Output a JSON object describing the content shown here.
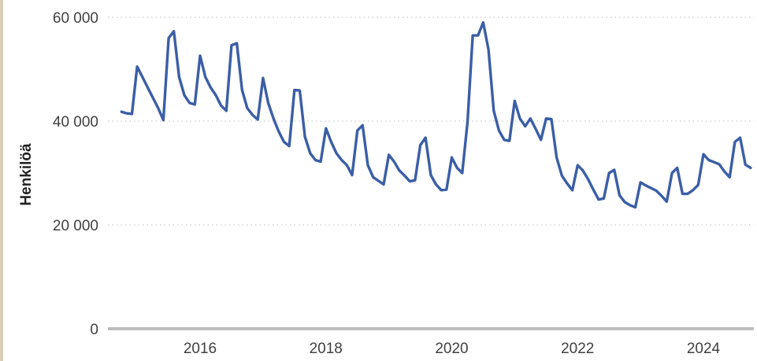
{
  "colors": {
    "line": "#3b5ea6",
    "grid": "#c9c9c9",
    "baseline": "#bdbdbd",
    "text": "#404040"
  },
  "chart_data": {
    "type": "line",
    "title": "",
    "xlabel": "",
    "ylabel": "Henkilöä",
    "ylim": [
      0,
      60000
    ],
    "yticks": [
      0,
      20000,
      40000,
      60000
    ],
    "ytick_labels": [
      "0",
      "20 000",
      "40 000",
      "60 000"
    ],
    "xticks": [
      "2016",
      "2018",
      "2020",
      "2022",
      "2024"
    ],
    "xlim": [
      "2014-10",
      "2024-10"
    ],
    "grid": "horizontal dotted",
    "legend": "none",
    "series": [
      {
        "x": [
          "2014-10",
          "2014-11",
          "2014-12",
          "2015-01",
          "2015-02",
          "2015-03",
          "2015-04",
          "2015-05",
          "2015-06",
          "2015-07",
          "2015-08",
          "2015-09",
          "2015-10",
          "2015-11",
          "2015-12",
          "2016-01",
          "2016-02",
          "2016-03",
          "2016-04",
          "2016-05",
          "2016-06",
          "2016-07",
          "2016-08",
          "2016-09",
          "2016-10",
          "2016-11",
          "2016-12",
          "2017-01",
          "2017-02",
          "2017-03",
          "2017-04",
          "2017-05",
          "2017-06",
          "2017-07",
          "2017-08",
          "2017-09",
          "2017-10",
          "2017-11",
          "2017-12",
          "2018-01",
          "2018-02",
          "2018-03",
          "2018-04",
          "2018-05",
          "2018-06",
          "2018-07",
          "2018-08",
          "2018-09",
          "2018-10",
          "2018-11",
          "2018-12",
          "2019-01",
          "2019-02",
          "2019-03",
          "2019-04",
          "2019-05",
          "2019-06",
          "2019-07",
          "2019-08",
          "2019-09",
          "2019-10",
          "2019-11",
          "2019-12",
          "2020-01",
          "2020-02",
          "2020-03",
          "2020-04",
          "2020-05",
          "2020-06",
          "2020-07",
          "2020-08",
          "2020-09",
          "2020-10",
          "2020-11",
          "2020-12",
          "2021-01",
          "2021-02",
          "2021-03",
          "2021-04",
          "2021-05",
          "2021-06",
          "2021-07",
          "2021-08",
          "2021-09",
          "2021-10",
          "2021-11",
          "2021-12",
          "2022-01",
          "2022-02",
          "2022-03",
          "2022-04",
          "2022-05",
          "2022-06",
          "2022-07",
          "2022-08",
          "2022-09",
          "2022-10",
          "2022-11",
          "2022-12",
          "2023-01",
          "2023-02",
          "2023-03",
          "2023-04",
          "2023-05",
          "2023-06",
          "2023-07",
          "2023-08",
          "2023-09",
          "2023-10",
          "2023-11",
          "2023-12",
          "2024-01",
          "2024-02",
          "2024-03",
          "2024-04",
          "2024-05",
          "2024-06",
          "2024-07",
          "2024-08",
          "2024-09",
          "2024-10"
        ],
        "values": [
          41800,
          41500,
          41400,
          50500,
          48500,
          46500,
          44500,
          42500,
          40200,
          56000,
          57300,
          48500,
          45000,
          43500,
          43200,
          52600,
          48500,
          46500,
          45000,
          43000,
          42000,
          54600,
          55000,
          46000,
          42500,
          41200,
          40300,
          48300,
          43500,
          40500,
          38000,
          36000,
          35200,
          46000,
          45900,
          37000,
          33800,
          32500,
          32200,
          38600,
          36000,
          33800,
          32500,
          31500,
          29600,
          38200,
          39200,
          31500,
          29200,
          28500,
          27800,
          33500,
          32200,
          30500,
          29500,
          28400,
          28600,
          35400,
          36800,
          29600,
          27800,
          26700,
          26800,
          33000,
          31000,
          30000,
          39800,
          56500,
          56500,
          59000,
          53800,
          42000,
          38200,
          36400,
          36200,
          43900,
          40500,
          39000,
          40500,
          38500,
          36400,
          40500,
          40400,
          33000,
          29500,
          28000,
          26700,
          31500,
          30500,
          28800,
          26800,
          24900,
          25100,
          30000,
          30600,
          25700,
          24400,
          23800,
          23400,
          28200,
          27600,
          27100,
          26600,
          25600,
          24500,
          30000,
          31000,
          26000,
          26000,
          26700,
          27700,
          33600,
          32500,
          32100,
          31700,
          30300,
          29200,
          36000,
          36800,
          31600,
          31000
        ]
      }
    ]
  }
}
